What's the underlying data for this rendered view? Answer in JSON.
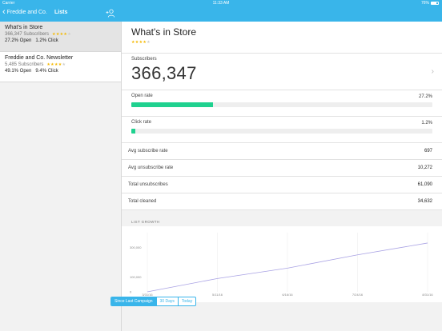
{
  "status_bar": {
    "carrier": "Carrier",
    "time": "11:33 AM",
    "battery": "76%"
  },
  "left_nav": {
    "back_label": "Freddie and Co.",
    "title": "Lists"
  },
  "lists": [
    {
      "name": "What's in Store",
      "subscribers": "366,347 Subscribers",
      "rating": 4,
      "open": "27.2% Open",
      "click": "1.2% Click",
      "selected": true
    },
    {
      "name": "Freddie and Co. Newsletter",
      "subscribers": "5,485 Subscribers",
      "rating": 4,
      "open": "49.1% Open",
      "click": "9.4% Click",
      "selected": false
    }
  ],
  "detail": {
    "title": "What's in Store",
    "rating": 4,
    "subscribers_label": "Subscribers",
    "subscribers_value": "366,347",
    "open_rate": {
      "label": "Open rate",
      "value": "27.2%",
      "fraction": 0.272
    },
    "click_rate": {
      "label": "Click rate",
      "value": "1.2%",
      "fraction": 0.012
    },
    "stats": [
      {
        "label": "Avg subscribe rate",
        "value": "697"
      },
      {
        "label": "Avg unsubscribe rate",
        "value": "10,272"
      },
      {
        "label": "Total unsubscribes",
        "value": "61,090"
      },
      {
        "label": "Total cleaned",
        "value": "34,632"
      }
    ],
    "growth_label": "LIST GROWTH"
  },
  "chart_data": {
    "type": "line",
    "title": "LIST GROWTH",
    "x": [
      "3/31/16",
      "5/11/16",
      "6/16/16",
      "7/24/16",
      "8/31/16"
    ],
    "y_ticks": [
      "300,000",
      "100,000",
      "0"
    ],
    "ylim": [
      0,
      400000
    ],
    "series": [
      {
        "values": [
          0,
          90000,
          160000,
          250000,
          330000
        ]
      }
    ],
    "grid": "vertical",
    "color": "#a9a2e4"
  },
  "range_options": [
    {
      "label": "Since Last Campaign",
      "active": true
    },
    {
      "label": "30 Days",
      "active": false
    },
    {
      "label": "Today",
      "active": false
    }
  ],
  "colors": {
    "accent": "#39b5ea",
    "bar": "#1fd18f",
    "star": "#f5b800"
  }
}
